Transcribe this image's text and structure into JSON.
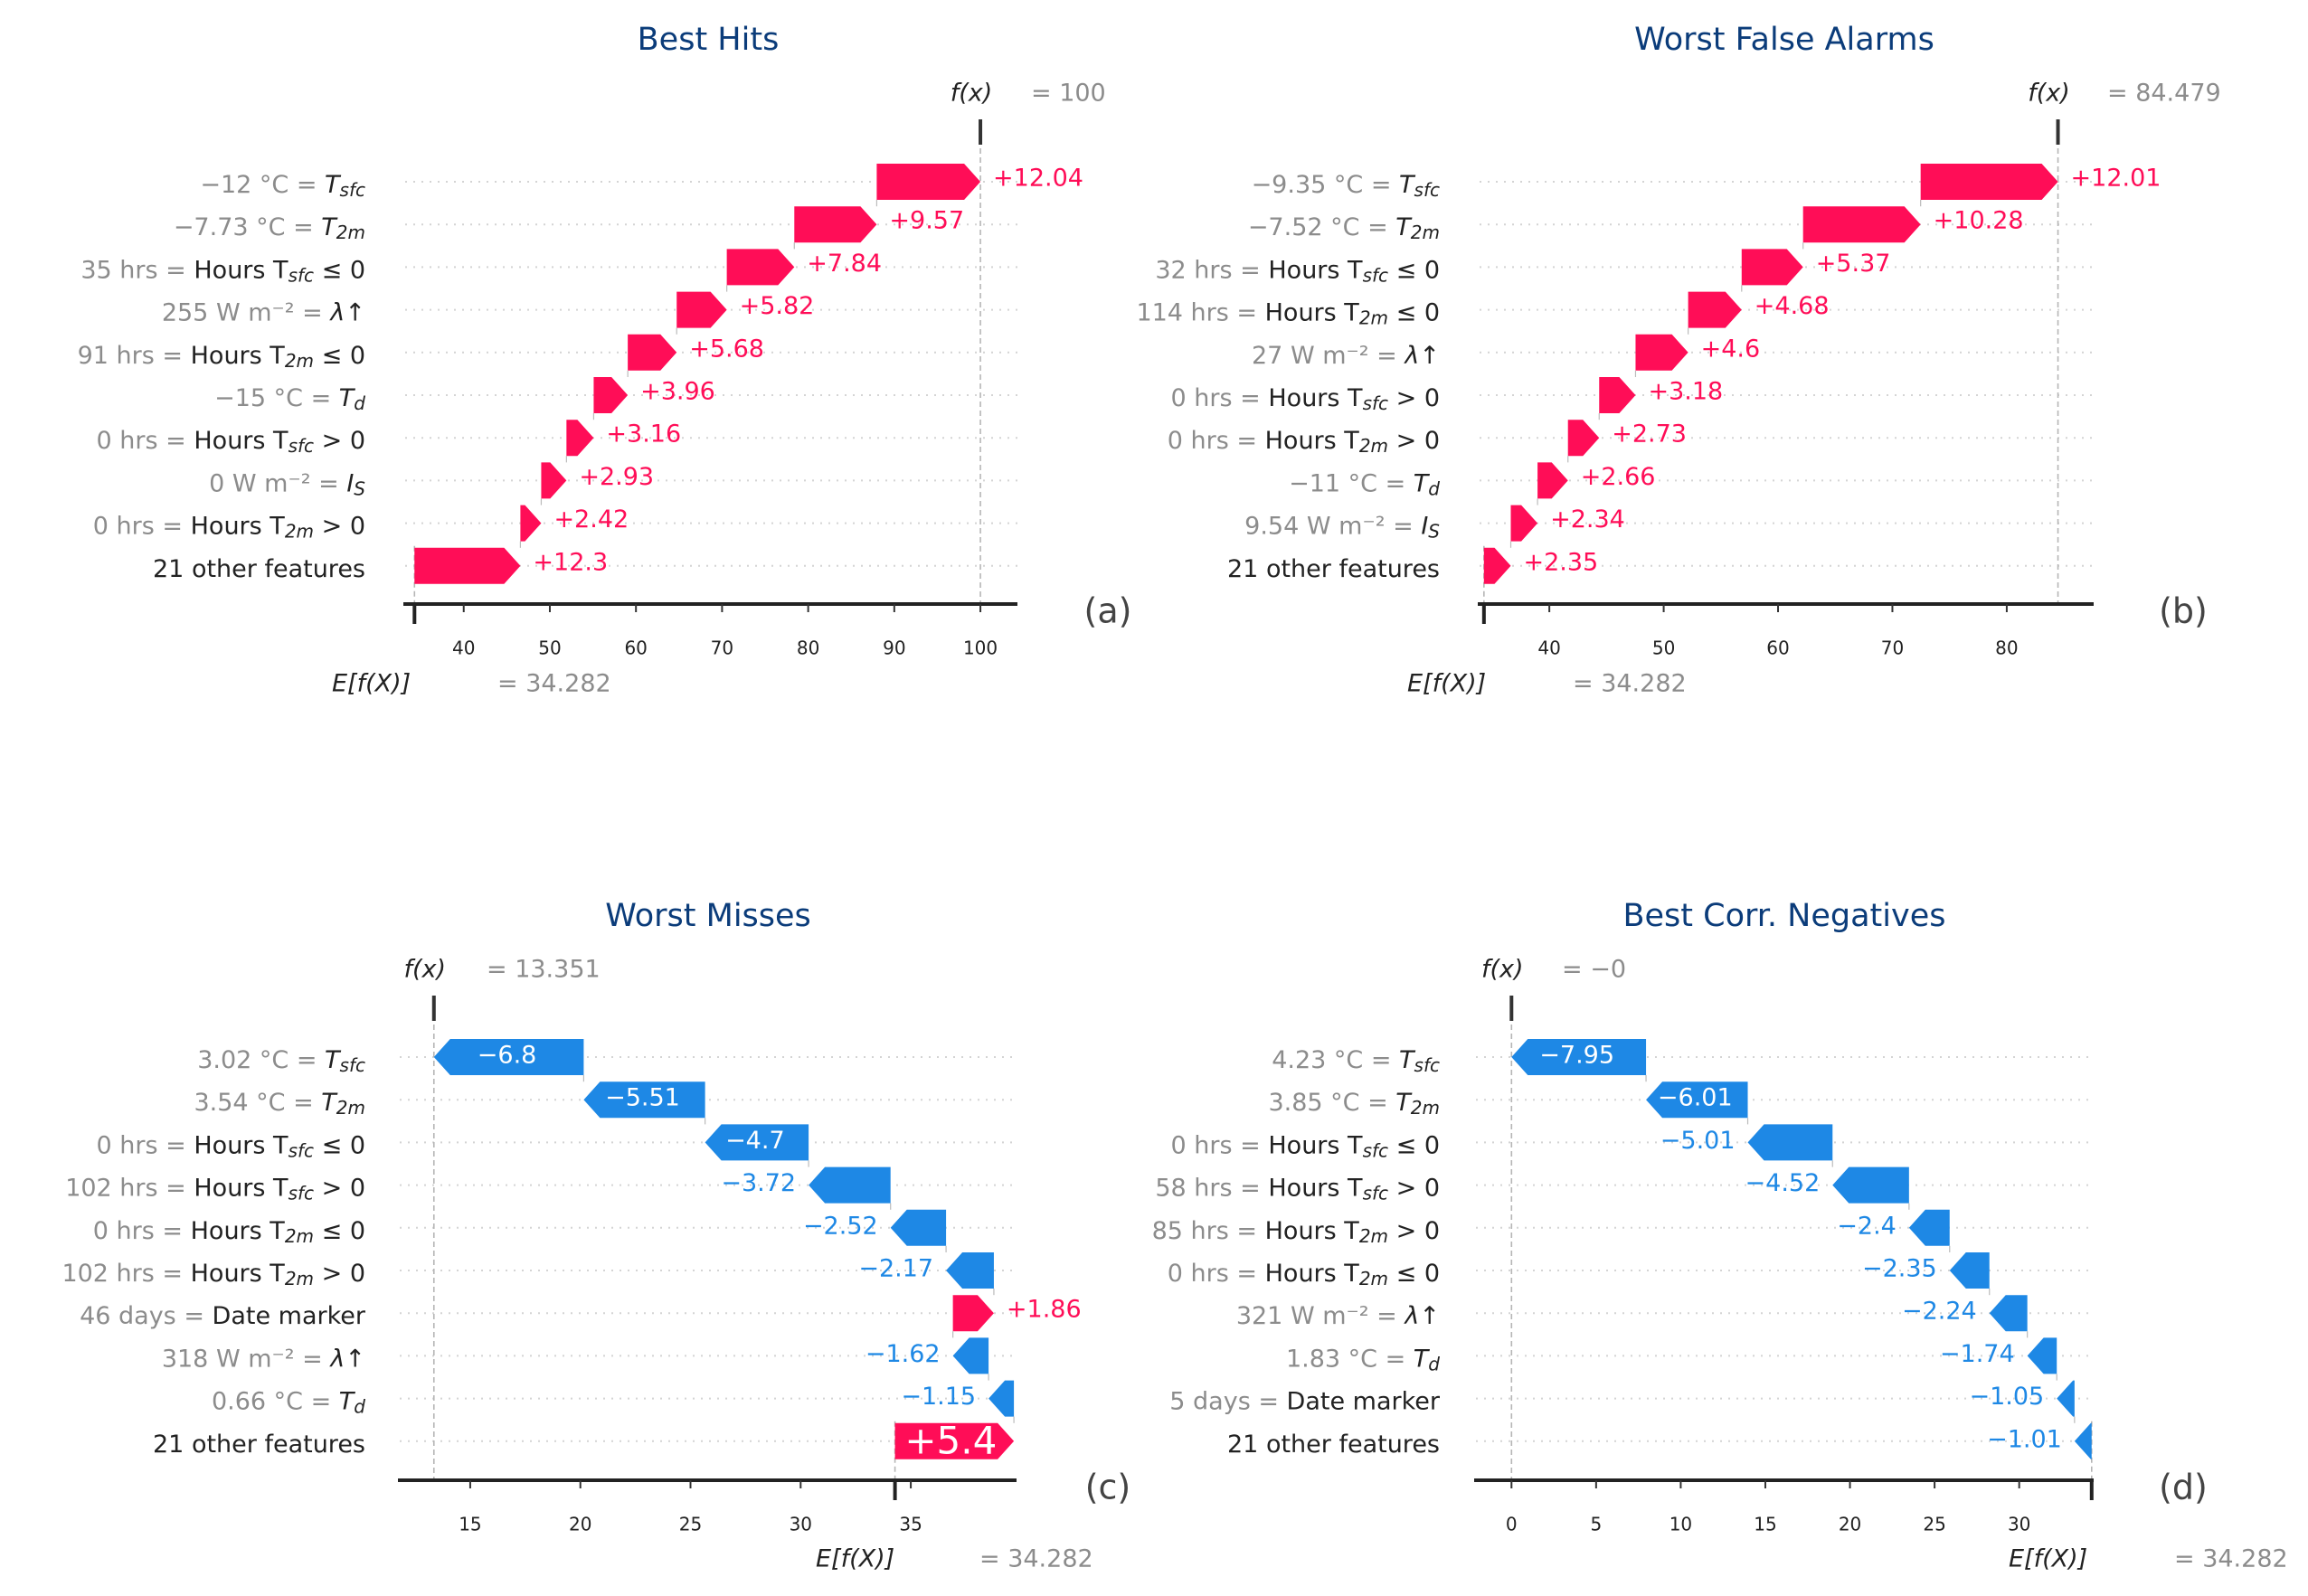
{
  "colors": {
    "positive": "#ff0d57",
    "negative": "#1e88e5",
    "title": "#0b3c7a",
    "muted": "#8c8c8c",
    "text": "#222222"
  },
  "chart_data": [
    {
      "type": "bar",
      "subtype": "shap-waterfall",
      "title": "Best Hits",
      "panel_label": "(a)",
      "fx_label": "f(x)",
      "fx_value_text": "= 100",
      "fx": 100,
      "ex_label": "E[f(X)]",
      "ex_value_text": "= 34.282",
      "base_value": 34.282,
      "xlim": [
        33.2,
        104.3
      ],
      "xticks": [
        40,
        50,
        60,
        70,
        80,
        90,
        100
      ],
      "features": [
        {
          "value": "−12 °C =",
          "name": "T",
          "sub": "sfc",
          "contribution": 12.04,
          "label": "+12.04"
        },
        {
          "value": "−7.73 °C =",
          "name": "T",
          "sub": "2m",
          "contribution": 9.57,
          "label": "+9.57"
        },
        {
          "value": "35 hrs =",
          "name": "Hours T",
          "sub": "sfc",
          "suffix": " ≤ 0",
          "contribution": 7.84,
          "label": "+7.84"
        },
        {
          "value": "255 W m⁻² =",
          "name": "λ↑",
          "contribution": 5.82,
          "label": "+5.82"
        },
        {
          "value": "91 hrs =",
          "name": "Hours T",
          "sub": "2m",
          "suffix": "  ≤  0",
          "contribution": 5.68,
          "label": "+5.68"
        },
        {
          "value": "−15 °C =",
          "name": "T",
          "sub": "d",
          "contribution": 3.96,
          "label": "+3.96"
        },
        {
          "value": "0 hrs =",
          "name": "Hours T",
          "sub": "sfc",
          "suffix": "  >  0",
          "contribution": 3.16,
          "label": "+3.16"
        },
        {
          "value": "0 W m⁻² =",
          "name": "I",
          "sub": "S",
          "contribution": 2.93,
          "label": "+2.93"
        },
        {
          "value": "0 hrs =",
          "name": "Hours T",
          "sub": "2m",
          "suffix": "  >  0",
          "contribution": 2.42,
          "label": "+2.42"
        },
        {
          "value": "",
          "name": "21 other features",
          "contribution": 12.3,
          "label": "+12.3"
        }
      ]
    },
    {
      "type": "bar",
      "subtype": "shap-waterfall",
      "title": "Worst False Alarms",
      "panel_label": "(b)",
      "fx_label": "f(x)",
      "fx_value_text": "= 84.479",
      "fx": 84.479,
      "ex_label": "E[f(X)]",
      "ex_value_text": "= 34.282",
      "base_value": 34.282,
      "xlim": [
        33.9,
        87.6
      ],
      "xticks": [
        40,
        50,
        60,
        70,
        80
      ],
      "features": [
        {
          "value": "−9.35 °C =",
          "name": "T",
          "sub": "sfc",
          "contribution": 12.01,
          "label": "+12.01"
        },
        {
          "value": "−7.52 °C =",
          "name": "T",
          "sub": "2m",
          "contribution": 10.28,
          "label": "+10.28"
        },
        {
          "value": "32 hrs =",
          "name": "Hours T",
          "sub": "sfc",
          "suffix": " ≤ 0",
          "contribution": 5.37,
          "label": "+5.37"
        },
        {
          "value": "114 hrs =",
          "name": "Hours T",
          "sub": "2m",
          "suffix": "  ≤  0",
          "contribution": 4.68,
          "label": "+4.68"
        },
        {
          "value": "27 W m⁻² =",
          "name": "λ↑",
          "contribution": 4.6,
          "label": "+4.6"
        },
        {
          "value": "0 hrs =",
          "name": "Hours T",
          "sub": "sfc",
          "suffix": "  >  0",
          "contribution": 3.18,
          "label": "+3.18"
        },
        {
          "value": "0 hrs =",
          "name": "Hours T",
          "sub": "2m",
          "suffix": "  >  0",
          "contribution": 2.73,
          "label": "+2.73"
        },
        {
          "value": "−11 °C =",
          "name": "T",
          "sub": "d",
          "contribution": 2.66,
          "label": "+2.66"
        },
        {
          "value": "9.54 W m⁻² =",
          "name": "I",
          "sub": "S",
          "contribution": 2.34,
          "label": "+2.34"
        },
        {
          "value": "",
          "name": "21 other features",
          "contribution": 2.35,
          "label": "+2.35"
        }
      ]
    },
    {
      "type": "bar",
      "subtype": "shap-waterfall",
      "title": "Worst Misses",
      "panel_label": "(c)",
      "fx_label": "f(x)",
      "fx_value_text": "= 13.351",
      "fx": 13.351,
      "ex_label": "E[f(X)]",
      "ex_value_text": "= 34.282",
      "base_value": 34.282,
      "xlim": [
        11.8,
        39.8
      ],
      "xticks": [
        15,
        20,
        25,
        30,
        35
      ],
      "features": [
        {
          "value": "3.02 °C =",
          "name": "T",
          "sub": "sfc",
          "contribution": -6.8,
          "label": "−6.8"
        },
        {
          "value": "3.54 °C =",
          "name": "T",
          "sub": "2m",
          "contribution": -5.51,
          "label": "−5.51"
        },
        {
          "value": "0 hrs =",
          "name": "Hours T",
          "sub": "sfc",
          "suffix": " ≤ 0",
          "contribution": -4.7,
          "label": "−4.7"
        },
        {
          "value": "102 hrs =",
          "name": "Hours T",
          "sub": "sfc",
          "suffix": "  >  0",
          "contribution": -3.72,
          "label": "−3.72"
        },
        {
          "value": "0 hrs =",
          "name": "Hours T",
          "sub": "2m",
          "suffix": "  ≤  0",
          "contribution": -2.52,
          "label": "−2.52"
        },
        {
          "value": "102 hrs =",
          "name": "Hours T",
          "sub": "2m",
          "suffix": "  >  0",
          "contribution": -2.17,
          "label": "−2.17"
        },
        {
          "value": "46 days =",
          "name": "Date marker",
          "contribution": 1.86,
          "label": "+1.86"
        },
        {
          "value": "318 W m⁻² =",
          "name": "λ↑",
          "contribution": -1.62,
          "label": "−1.62"
        },
        {
          "value": "0.66 °C =",
          "name": "T",
          "sub": "d",
          "contribution": -1.15,
          "label": "−1.15"
        },
        {
          "value": "",
          "name": "21 other features",
          "contribution": 5.4,
          "label": "+5.4"
        }
      ]
    },
    {
      "type": "bar",
      "subtype": "shap-waterfall",
      "title": "Best Corr. Negatives",
      "panel_label": "(d)",
      "fx_label": "f(x)",
      "fx_value_text": "= −0",
      "fx": 0,
      "ex_label": "E[f(X)]",
      "ex_value_text": "= 34.282",
      "base_value": 34.282,
      "xlim": [
        -2.1,
        34.4
      ],
      "xticks": [
        0,
        5,
        10,
        15,
        20,
        25,
        30
      ],
      "features": [
        {
          "value": "4.23 °C =",
          "name": "T",
          "sub": "sfc",
          "contribution": -7.95,
          "label": "−7.95"
        },
        {
          "value": "3.85 °C =",
          "name": "T",
          "sub": "2m",
          "contribution": -6.01,
          "label": "−6.01"
        },
        {
          "value": "0 hrs =",
          "name": "Hours T",
          "sub": "sfc",
          "suffix": " ≤ 0",
          "contribution": -5.01,
          "label": "−5.01"
        },
        {
          "value": "58 hrs =",
          "name": "Hours T",
          "sub": "sfc",
          "suffix": "  >  0",
          "contribution": -4.52,
          "label": "−4.52"
        },
        {
          "value": "85 hrs =",
          "name": "Hours T",
          "sub": "2m",
          "suffix": "  >  0",
          "contribution": -2.4,
          "label": "−2.4"
        },
        {
          "value": "0 hrs =",
          "name": "Hours T",
          "sub": "2m",
          "suffix": "  ≤  0",
          "contribution": -2.35,
          "label": "−2.35"
        },
        {
          "value": "321 W m⁻² =",
          "name": "λ↑",
          "contribution": -2.24,
          "label": "−2.24"
        },
        {
          "value": "1.83 °C =",
          "name": "T",
          "sub": "d",
          "contribution": -1.74,
          "label": "−1.74"
        },
        {
          "value": "5 days =",
          "name": "Date marker",
          "contribution": -1.05,
          "label": "−1.05"
        },
        {
          "value": "",
          "name": "21 other features",
          "contribution": -1.01,
          "label": "−1.01"
        }
      ]
    }
  ]
}
